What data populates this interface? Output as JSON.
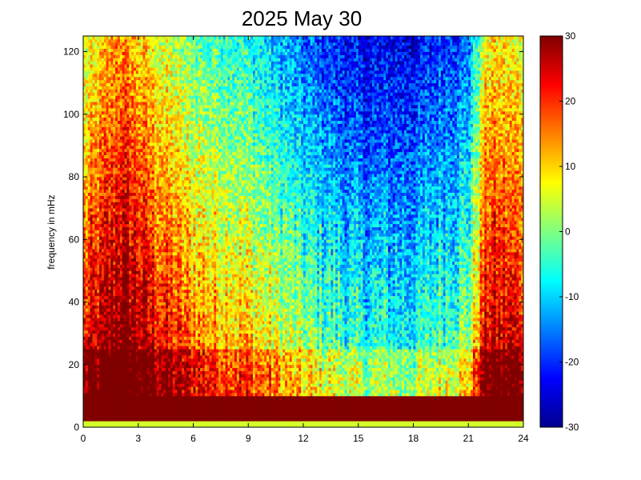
{
  "chart_data": {
    "type": "heatmap",
    "title": "2025 May 30",
    "xlabel": "",
    "ylabel": "frequency in mHz",
    "xlim": [
      0,
      24
    ],
    "ylim": [
      0,
      125
    ],
    "x_ticks": [
      "0",
      "3",
      "6",
      "9",
      "12",
      "15",
      "18",
      "21",
      "24"
    ],
    "y_ticks": [
      "0",
      "20",
      "40",
      "60",
      "80",
      "100",
      "120"
    ],
    "colorbar": {
      "colormap": "jet",
      "clim": [
        -30,
        30
      ],
      "ticks": [
        "30",
        "20",
        "10",
        "0",
        "-10",
        "-20",
        "-30"
      ]
    },
    "grid": false,
    "approximate_field": {
      "description_of_axes": "x = hour of day (0-24), y = frequency (mHz), value = power (dB)",
      "low_frequency_band": {
        "freq_range": [
          0,
          10
        ],
        "value": 30
      },
      "night_hours_profile": [
        {
          "hour": 0,
          "value_at_60mHz": 15
        },
        {
          "hour": 2,
          "value_at_60mHz": 26
        },
        {
          "hour": 6,
          "value_at_60mHz": 10
        },
        {
          "hour": 9,
          "value_at_60mHz": 5
        },
        {
          "hour": 12,
          "value_at_60mHz": -5
        },
        {
          "hour": 15,
          "value_at_60mHz": -12
        },
        {
          "hour": 18,
          "value_at_60mHz": -12
        },
        {
          "hour": 21,
          "value_at_60mHz": -5
        },
        {
          "hour": 22,
          "value_at_60mHz": 20
        },
        {
          "hour": 24,
          "value_at_60mHz": 18
        }
      ],
      "minimum_region": {
        "hour": 15.5,
        "freq": 110,
        "value": -27
      }
    }
  }
}
